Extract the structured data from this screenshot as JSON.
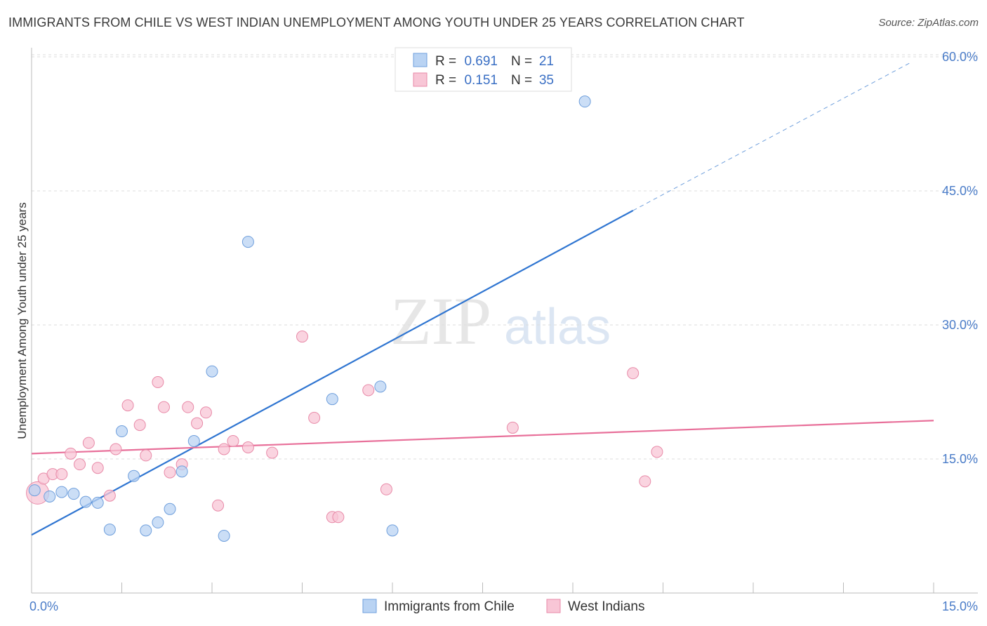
{
  "header": {
    "title": "IMMIGRANTS FROM CHILE VS WEST INDIAN UNEMPLOYMENT AMONG YOUTH UNDER 25 YEARS CORRELATION CHART",
    "source": "Source: ZipAtlas.com"
  },
  "watermark": {
    "zip": "ZIP",
    "atlas": "atlas"
  },
  "legend": {
    "rows": [
      {
        "r_label": "R =",
        "r_value": "0.691",
        "n_label": "N =",
        "n_value": "21"
      },
      {
        "r_label": "R =",
        "r_value": "0.151",
        "n_label": "N =",
        "n_value": "35"
      }
    ]
  },
  "colors": {
    "blue_fill": "#b9d3f3",
    "blue_stroke": "#6f9fdc",
    "blue_line": "#2f75d1",
    "pink_fill": "#f8c6d6",
    "pink_stroke": "#e88aa8",
    "pink_line": "#e8709a",
    "tick_label": "#4a7cc8",
    "grid": "#dddddd"
  },
  "chart_data": {
    "type": "scatter",
    "title": "IMMIGRANTS FROM CHILE VS WEST INDIAN UNEMPLOYMENT AMONG YOUTH UNDER 25 YEARS CORRELATION CHART",
    "xlabel": "",
    "ylabel": "Unemployment Among Youth under 25 years",
    "xlim": [
      0,
      15
    ],
    "ylim": [
      0,
      60
    ],
    "x_tick_labels": [
      "0.0%",
      "15.0%"
    ],
    "y_ticks": [
      15,
      30,
      45,
      60
    ],
    "y_tick_labels": [
      "15.0%",
      "30.0%",
      "45.0%",
      "60.0%"
    ],
    "grid": true,
    "legend_position": "top-center",
    "series": [
      {
        "name": "Immigrants from Chile",
        "r": 0.691,
        "n": 21,
        "color": "#6f9fdc",
        "points": [
          [
            0.05,
            11.5
          ],
          [
            0.3,
            10.8
          ],
          [
            0.5,
            11.3
          ],
          [
            0.7,
            11.1
          ],
          [
            0.9,
            10.2
          ],
          [
            1.1,
            10.1
          ],
          [
            1.3,
            7.1
          ],
          [
            1.5,
            18.1
          ],
          [
            1.7,
            13.1
          ],
          [
            1.9,
            7.0
          ],
          [
            2.1,
            7.9
          ],
          [
            2.3,
            9.4
          ],
          [
            2.5,
            13.6
          ],
          [
            2.7,
            17.0
          ],
          [
            3.0,
            24.8
          ],
          [
            3.2,
            6.4
          ],
          [
            3.6,
            39.3
          ],
          [
            5.0,
            21.7
          ],
          [
            5.8,
            23.1
          ],
          [
            6.0,
            7.0
          ],
          [
            9.2,
            55.0
          ]
        ],
        "trendline": {
          "x": [
            0.0,
            10.0
          ],
          "y": [
            6.5,
            42.8
          ],
          "dashed_extension_to": [
            14.6,
            59.3
          ]
        }
      },
      {
        "name": "West Indians",
        "r": 0.151,
        "n": 35,
        "color": "#e88aa8",
        "points": [
          [
            0.1,
            11.2
          ],
          [
            0.2,
            12.8
          ],
          [
            0.35,
            13.3
          ],
          [
            0.5,
            13.3
          ],
          [
            0.65,
            15.6
          ],
          [
            0.8,
            14.4
          ],
          [
            0.95,
            16.8
          ],
          [
            1.1,
            14.0
          ],
          [
            1.3,
            10.9
          ],
          [
            1.4,
            16.1
          ],
          [
            1.6,
            21.0
          ],
          [
            1.8,
            18.8
          ],
          [
            1.9,
            15.4
          ],
          [
            2.1,
            23.6
          ],
          [
            2.2,
            20.8
          ],
          [
            2.3,
            13.5
          ],
          [
            2.5,
            14.4
          ],
          [
            2.6,
            20.8
          ],
          [
            2.75,
            19.0
          ],
          [
            2.9,
            20.2
          ],
          [
            3.1,
            9.8
          ],
          [
            3.2,
            16.1
          ],
          [
            3.35,
            17.0
          ],
          [
            3.6,
            16.3
          ],
          [
            4.0,
            15.7
          ],
          [
            4.5,
            28.7
          ],
          [
            4.7,
            19.6
          ],
          [
            5.0,
            8.5
          ],
          [
            5.1,
            8.5
          ],
          [
            5.6,
            22.7
          ],
          [
            5.9,
            11.6
          ],
          [
            8.0,
            18.5
          ],
          [
            10.0,
            24.6
          ],
          [
            10.2,
            12.5
          ],
          [
            10.4,
            15.8
          ]
        ],
        "trendline": {
          "x": [
            0.0,
            15.0
          ],
          "y": [
            15.6,
            19.3
          ]
        }
      }
    ]
  }
}
